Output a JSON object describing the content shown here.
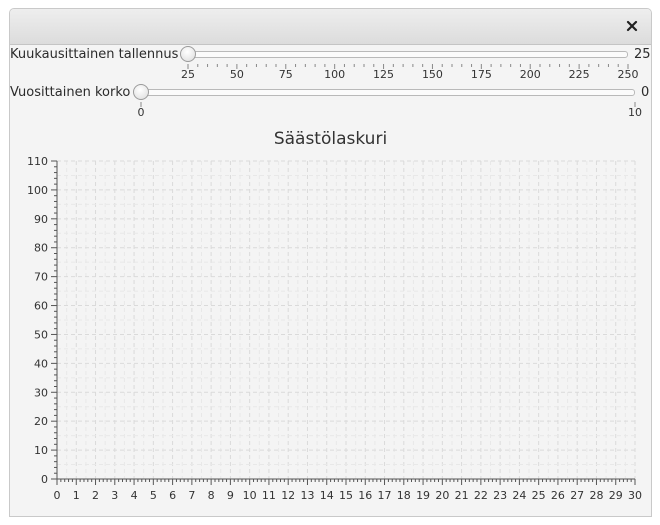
{
  "window": {
    "close_icon": "close-icon"
  },
  "sliders": [
    {
      "label": "Kuukausittainen tallennus",
      "value": "25",
      "min": 25,
      "max": 250,
      "major_labels": [
        "25",
        "50",
        "75",
        "100",
        "125",
        "150",
        "175",
        "200",
        "225",
        "250"
      ]
    },
    {
      "label": "Vuosittainen korko",
      "value": "0",
      "min": 0,
      "max": 10,
      "major_labels": [
        "0",
        "10"
      ]
    }
  ],
  "chart_data": {
    "type": "line",
    "title": "Säästölaskuri",
    "xlabel": "",
    "ylabel": "",
    "xlim": [
      0,
      30
    ],
    "ylim": [
      0,
      110
    ],
    "x_ticks": [
      0,
      1,
      2,
      3,
      4,
      5,
      6,
      7,
      8,
      9,
      10,
      11,
      12,
      13,
      14,
      15,
      16,
      17,
      18,
      19,
      20,
      21,
      22,
      23,
      24,
      25,
      26,
      27,
      28,
      29,
      30
    ],
    "y_ticks": [
      0,
      10,
      20,
      30,
      40,
      50,
      60,
      70,
      80,
      90,
      100,
      110
    ],
    "series": [],
    "grid": true,
    "grid_style": "dashed",
    "colors": {
      "grid": "#dddddd",
      "axis": "#555555"
    }
  }
}
